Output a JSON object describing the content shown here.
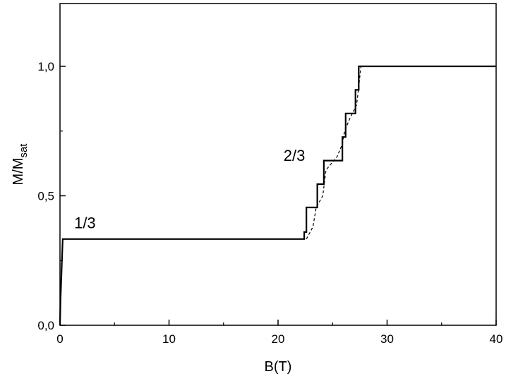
{
  "chart_data": {
    "type": "line",
    "title": "",
    "xlabel": "B(T)",
    "ylabel_main": "M/M",
    "ylabel_sub": "sat",
    "xlim": [
      0,
      40
    ],
    "ylim": [
      0,
      1.25
    ],
    "xticks": [
      0,
      10,
      20,
      30,
      40
    ],
    "xtick_labels": [
      "0",
      "10",
      "20",
      "30",
      "40"
    ],
    "yticks": [
      0,
      0.5,
      1.0
    ],
    "ytick_labels": [
      "0,0",
      "0,5",
      "1,0"
    ],
    "grid": false,
    "legend": "none",
    "annotations": [
      {
        "text": "1/3",
        "x": 1.3,
        "y": 0.375
      },
      {
        "text": "2/3",
        "x": 20.5,
        "y": 0.635
      }
    ],
    "series": [
      {
        "style": "solid",
        "color": "#000000",
        "points": [
          [
            0,
            0
          ],
          [
            0.05,
            0.1
          ],
          [
            0.12,
            0.18
          ],
          [
            0.25,
            0.333
          ],
          [
            22.4,
            0.333
          ],
          [
            22.4,
            0.36
          ],
          [
            22.6,
            0.36
          ],
          [
            22.6,
            0.455
          ],
          [
            23.6,
            0.455
          ],
          [
            23.6,
            0.545
          ],
          [
            24.2,
            0.545
          ],
          [
            24.2,
            0.636
          ],
          [
            25.9,
            0.636
          ],
          [
            25.9,
            0.727
          ],
          [
            26.2,
            0.727
          ],
          [
            26.2,
            0.818
          ],
          [
            27.1,
            0.818
          ],
          [
            27.1,
            0.909
          ],
          [
            27.4,
            0.909
          ],
          [
            27.4,
            1.0
          ],
          [
            40,
            1.0
          ]
        ]
      },
      {
        "style": "dashed",
        "color": "#000000",
        "points": [
          [
            22.6,
            0.333
          ],
          [
            23.2,
            0.38
          ],
          [
            23.5,
            0.455
          ],
          [
            24.1,
            0.5
          ],
          [
            24.4,
            0.6
          ],
          [
            25.4,
            0.65
          ],
          [
            25.9,
            0.7
          ],
          [
            26.1,
            0.75
          ],
          [
            26.6,
            0.8
          ],
          [
            27.2,
            0.85
          ],
          [
            27.4,
            0.92
          ],
          [
            27.6,
            1.0
          ]
        ]
      }
    ]
  }
}
